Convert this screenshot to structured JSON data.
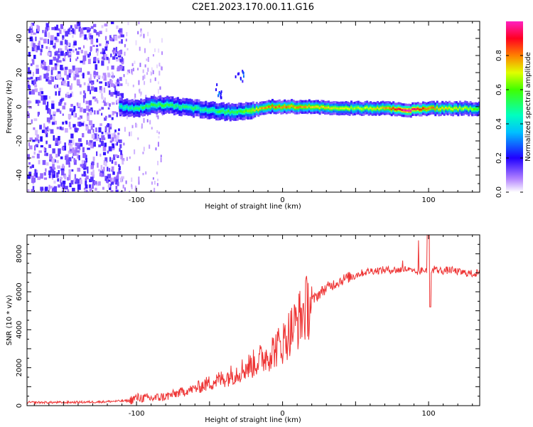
{
  "figure_title": "C2E1.2023.170.00.11.G16",
  "chart_data": [
    {
      "type": "heatmap",
      "xlabel": "Height of straight line (km)",
      "ylabel": "Frequency (Hz)",
      "xlim": [
        -175,
        135
      ],
      "ylim": [
        -50,
        50
      ],
      "x_ticks": [
        -100,
        0,
        100
      ],
      "y_ticks": [
        -40,
        -20,
        0,
        20,
        40
      ],
      "colorbar": {
        "label": "Normalized spectral amplitude",
        "range": [
          0,
          1
        ],
        "ticks": [
          0.0,
          0.2,
          0.4,
          0.6,
          0.8
        ],
        "colormap": [
          "#ffffff",
          "#8000ff",
          "#0000ff",
          "#00ffff",
          "#00ff00",
          "#ffff00",
          "#ff8000",
          "#ff0000",
          "#ff00ff"
        ]
      },
      "ridge": [
        {
          "x": -112,
          "f": 0,
          "amp": 0.45
        },
        {
          "x": -100,
          "f": -1,
          "amp": 0.5
        },
        {
          "x": -90,
          "f": 1,
          "amp": 0.55
        },
        {
          "x": -80,
          "f": 1,
          "amp": 0.55
        },
        {
          "x": -70,
          "f": 0,
          "amp": 0.5
        },
        {
          "x": -60,
          "f": -1,
          "amp": 0.5
        },
        {
          "x": -50,
          "f": -2,
          "amp": 0.5
        },
        {
          "x": -40,
          "f": -3,
          "amp": 0.55
        },
        {
          "x": -30,
          "f": -3,
          "amp": 0.55
        },
        {
          "x": -20,
          "f": -2,
          "amp": 0.7
        },
        {
          "x": -10,
          "f": 0,
          "amp": 0.8
        },
        {
          "x": 0,
          "f": 0,
          "amp": 0.8
        },
        {
          "x": 20,
          "f": 0,
          "amp": 0.75
        },
        {
          "x": 50,
          "f": -1,
          "amp": 0.65
        },
        {
          "x": 70,
          "f": -1,
          "amp": 0.75
        },
        {
          "x": 85,
          "f": -2,
          "amp": 1.0
        },
        {
          "x": 100,
          "f": -1,
          "amp": 0.8
        },
        {
          "x": 135,
          "f": -1,
          "amp": 0.6
        }
      ],
      "harmonic_patches": [
        {
          "x": -45,
          "f": 10,
          "amp": 0.35
        },
        {
          "x": -30,
          "f": 18,
          "amp": 0.3
        }
      ]
    },
    {
      "type": "line",
      "xlabel": "Height of straight line (km)",
      "ylabel": "SNR (10 * v/v)",
      "xlim": [
        -175,
        135
      ],
      "ylim": [
        0,
        9000
      ],
      "x_ticks": [
        -100,
        0,
        100
      ],
      "y_ticks": [
        0,
        2000,
        4000,
        6000,
        8000
      ],
      "color": "#ee3333",
      "series": [
        {
          "x": [
            -175,
            -150,
            -125,
            -105,
            -100,
            -90,
            -80,
            -70,
            -60,
            -50,
            -40,
            -30,
            -20,
            -10,
            0,
            5,
            10,
            15,
            20,
            25,
            30,
            40,
            50,
            60,
            70,
            80,
            85,
            90,
            95,
            100,
            105,
            110,
            115,
            120,
            125,
            130,
            135
          ],
          "y": [
            170,
            170,
            200,
            260,
            420,
            380,
            480,
            700,
            900,
            1200,
            1450,
            1800,
            2200,
            2700,
            3300,
            3900,
            4400,
            5000,
            5500,
            5900,
            6200,
            6600,
            6900,
            7100,
            7150,
            7150,
            7200,
            7000,
            7100,
            7200,
            7150,
            7100,
            7150,
            7050,
            7000,
            6950,
            7000
          ]
        }
      ]
    }
  ]
}
